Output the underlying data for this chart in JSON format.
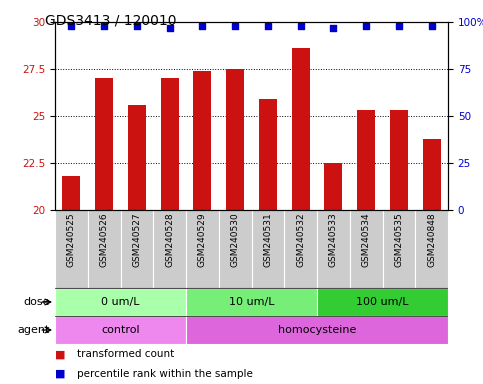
{
  "title": "GDS3413 / 120010",
  "samples": [
    "GSM240525",
    "GSM240526",
    "GSM240527",
    "GSM240528",
    "GSM240529",
    "GSM240530",
    "GSM240531",
    "GSM240532",
    "GSM240533",
    "GSM240534",
    "GSM240535",
    "GSM240848"
  ],
  "bar_values": [
    21.8,
    27.0,
    25.6,
    27.0,
    27.4,
    27.5,
    25.9,
    28.6,
    22.5,
    25.3,
    25.3,
    23.8
  ],
  "percentile_values": [
    98,
    98,
    98,
    97,
    98,
    98,
    98,
    98,
    97,
    98,
    98,
    98
  ],
  "bar_color": "#cc1111",
  "dot_color": "#0000cc",
  "ylim_left": [
    20,
    30
  ],
  "ylim_right": [
    0,
    100
  ],
  "yticks_left": [
    20,
    22.5,
    25,
    27.5,
    30
  ],
  "yticks_right": [
    0,
    25,
    50,
    75,
    100
  ],
  "dose_groups": [
    {
      "label": "0 um/L",
      "start": 0,
      "end": 4,
      "color": "#aaffaa"
    },
    {
      "label": "10 um/L",
      "start": 4,
      "end": 8,
      "color": "#77ee77"
    },
    {
      "label": "100 um/L",
      "start": 8,
      "end": 12,
      "color": "#33cc33"
    }
  ],
  "agent_groups": [
    {
      "label": "control",
      "start": 0,
      "end": 4,
      "color": "#ee88ee"
    },
    {
      "label": "homocysteine",
      "start": 4,
      "end": 12,
      "color": "#dd66dd"
    }
  ],
  "dose_label": "dose",
  "agent_label": "agent",
  "legend_items": [
    {
      "label": "transformed count",
      "color": "#cc1111"
    },
    {
      "label": "percentile rank within the sample",
      "color": "#0000cc"
    }
  ],
  "sample_bg_color": "#cccccc",
  "title_fontsize": 10,
  "tick_fontsize": 7.5,
  "bar_label_fontsize": 6.5,
  "row_label_fontsize": 8,
  "legend_fontsize": 7.5
}
